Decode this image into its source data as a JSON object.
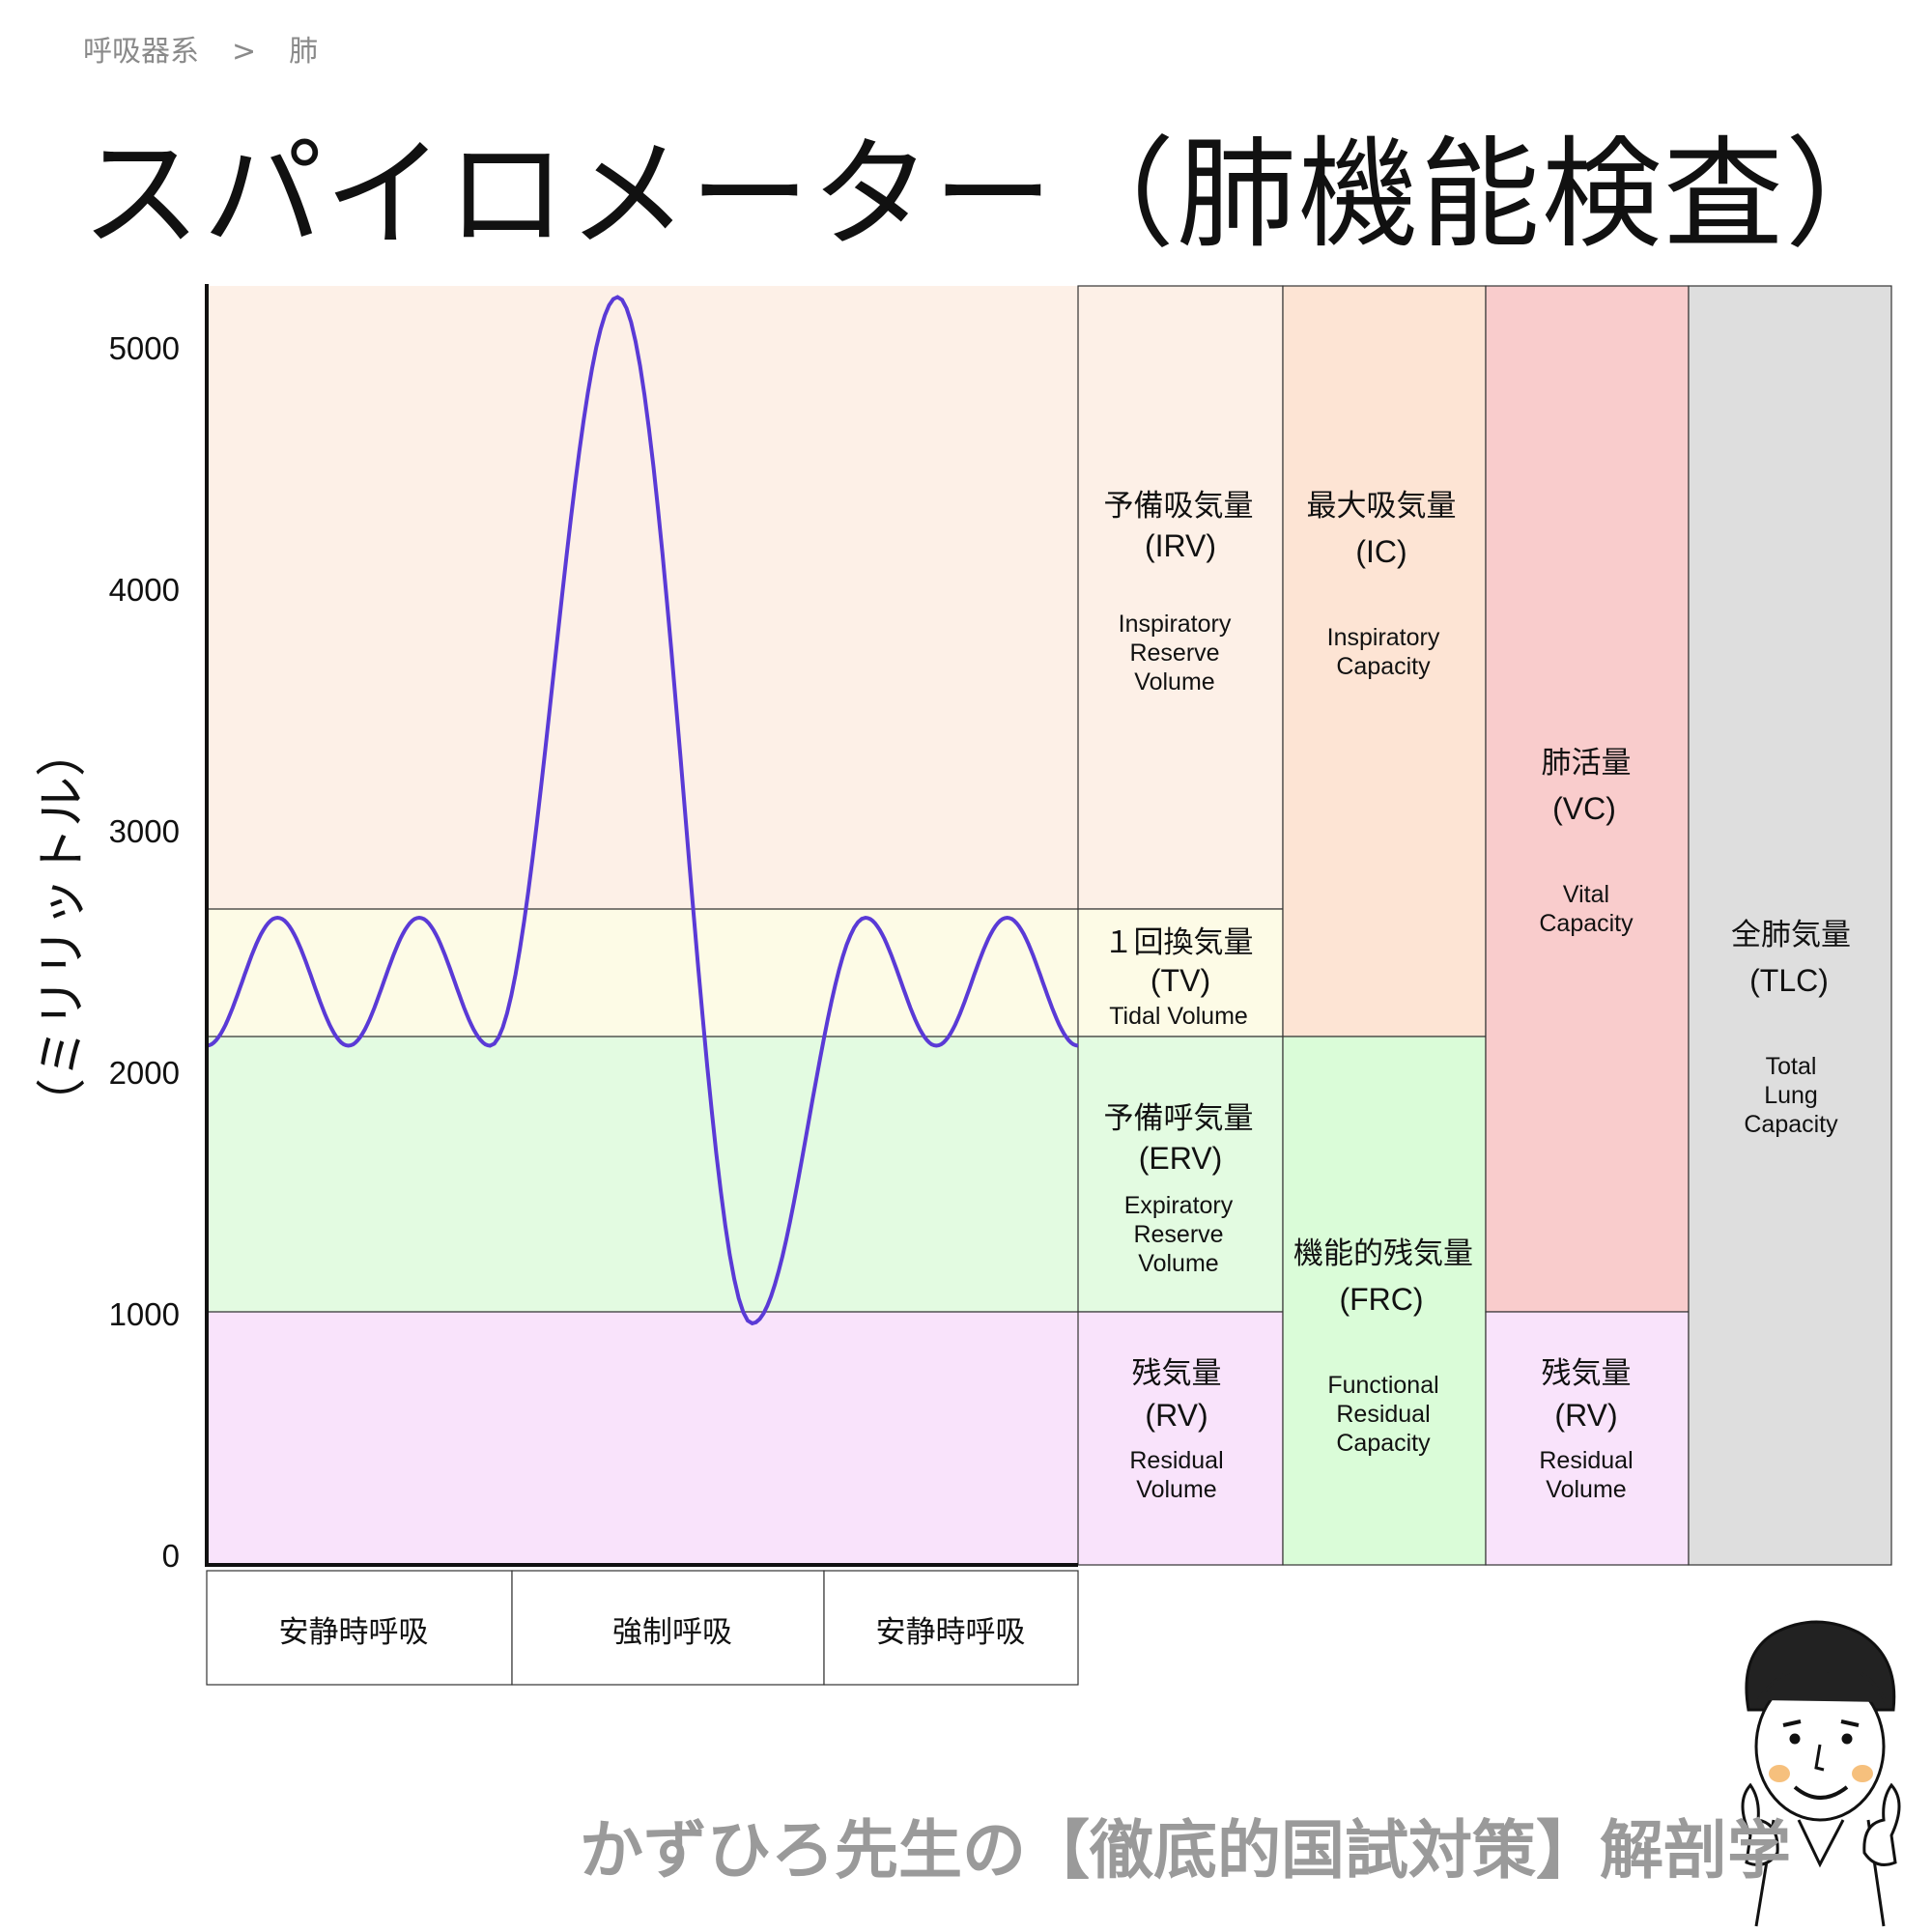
{
  "breadcrumb": {
    "parent": "呼吸器系",
    "separator": ">",
    "current": "肺"
  },
  "title": "スパイロメーター（肺機能検査）",
  "y_axis_label": "（ミリリットル）",
  "footer_text": "かずひろ先生の【徹底的国試対策】解剖学",
  "colors": {
    "irv_fill": "#fdf0e7",
    "tv_fill": "#fdfbe6",
    "erv_fill": "#e3fbe1",
    "rv_fill": "#f9e3fb",
    "ic_fill": "#fde4d4",
    "frc_fill": "#dafcd8",
    "vc_fill": "#f9cccc",
    "tlc_fill": "#dedede",
    "curve": "#5a3ad6"
  },
  "chart_data": {
    "type": "line",
    "ylabel": "（ミリリットル）",
    "y_ticks": [
      0,
      1000,
      2000,
      3000,
      4000,
      5000
    ],
    "ylim": [
      0,
      5300
    ],
    "levels": {
      "rv_top": 1000,
      "erv_top": 2150,
      "tv_top": 2680,
      "max": 5250
    },
    "phases": [
      "安静時呼吸",
      "強制呼吸",
      "安静時呼吸"
    ],
    "series": [
      {
        "values": [
          2150,
          2680,
          2150,
          2680,
          2150,
          5250,
          1000,
          2680,
          2150,
          2680,
          2150
        ]
      }
    ]
  },
  "volumes": {
    "irv": {
      "jp": "予備吸気量",
      "abbr": "(IRV)",
      "en": [
        "Inspiratory",
        "Reserve",
        "Volume"
      ]
    },
    "tv": {
      "jp": "１回換気量",
      "abbr": "(TV)",
      "en": [
        "Tidal Volume"
      ]
    },
    "erv": {
      "jp": "予備呼気量",
      "abbr": "(ERV)",
      "en": [
        "Expiratory",
        "Reserve",
        "Volume"
      ]
    },
    "rv": {
      "jp": "残気量",
      "abbr": "(RV)",
      "en": [
        "Residual",
        "Volume"
      ]
    }
  },
  "capacities": {
    "ic": {
      "jp": "最大吸気量",
      "abbr": "(IC)",
      "en": [
        "Inspiratory",
        "Capacity"
      ]
    },
    "frc": {
      "jp": "機能的残気量",
      "abbr": "(FRC)",
      "en": [
        "Functional",
        "Residual",
        "Capacity"
      ]
    },
    "vc": {
      "jp": "肺活量",
      "abbr": "(VC)",
      "en": [
        "Vital",
        "Capacity"
      ]
    },
    "rv2": {
      "jp": "残気量",
      "abbr": "(RV)",
      "en": [
        "Residual",
        "Volume"
      ]
    },
    "tlc": {
      "jp": "全肺気量",
      "abbr": "(TLC)",
      "en": [
        "Total",
        "Lung",
        "Capacity"
      ]
    }
  }
}
